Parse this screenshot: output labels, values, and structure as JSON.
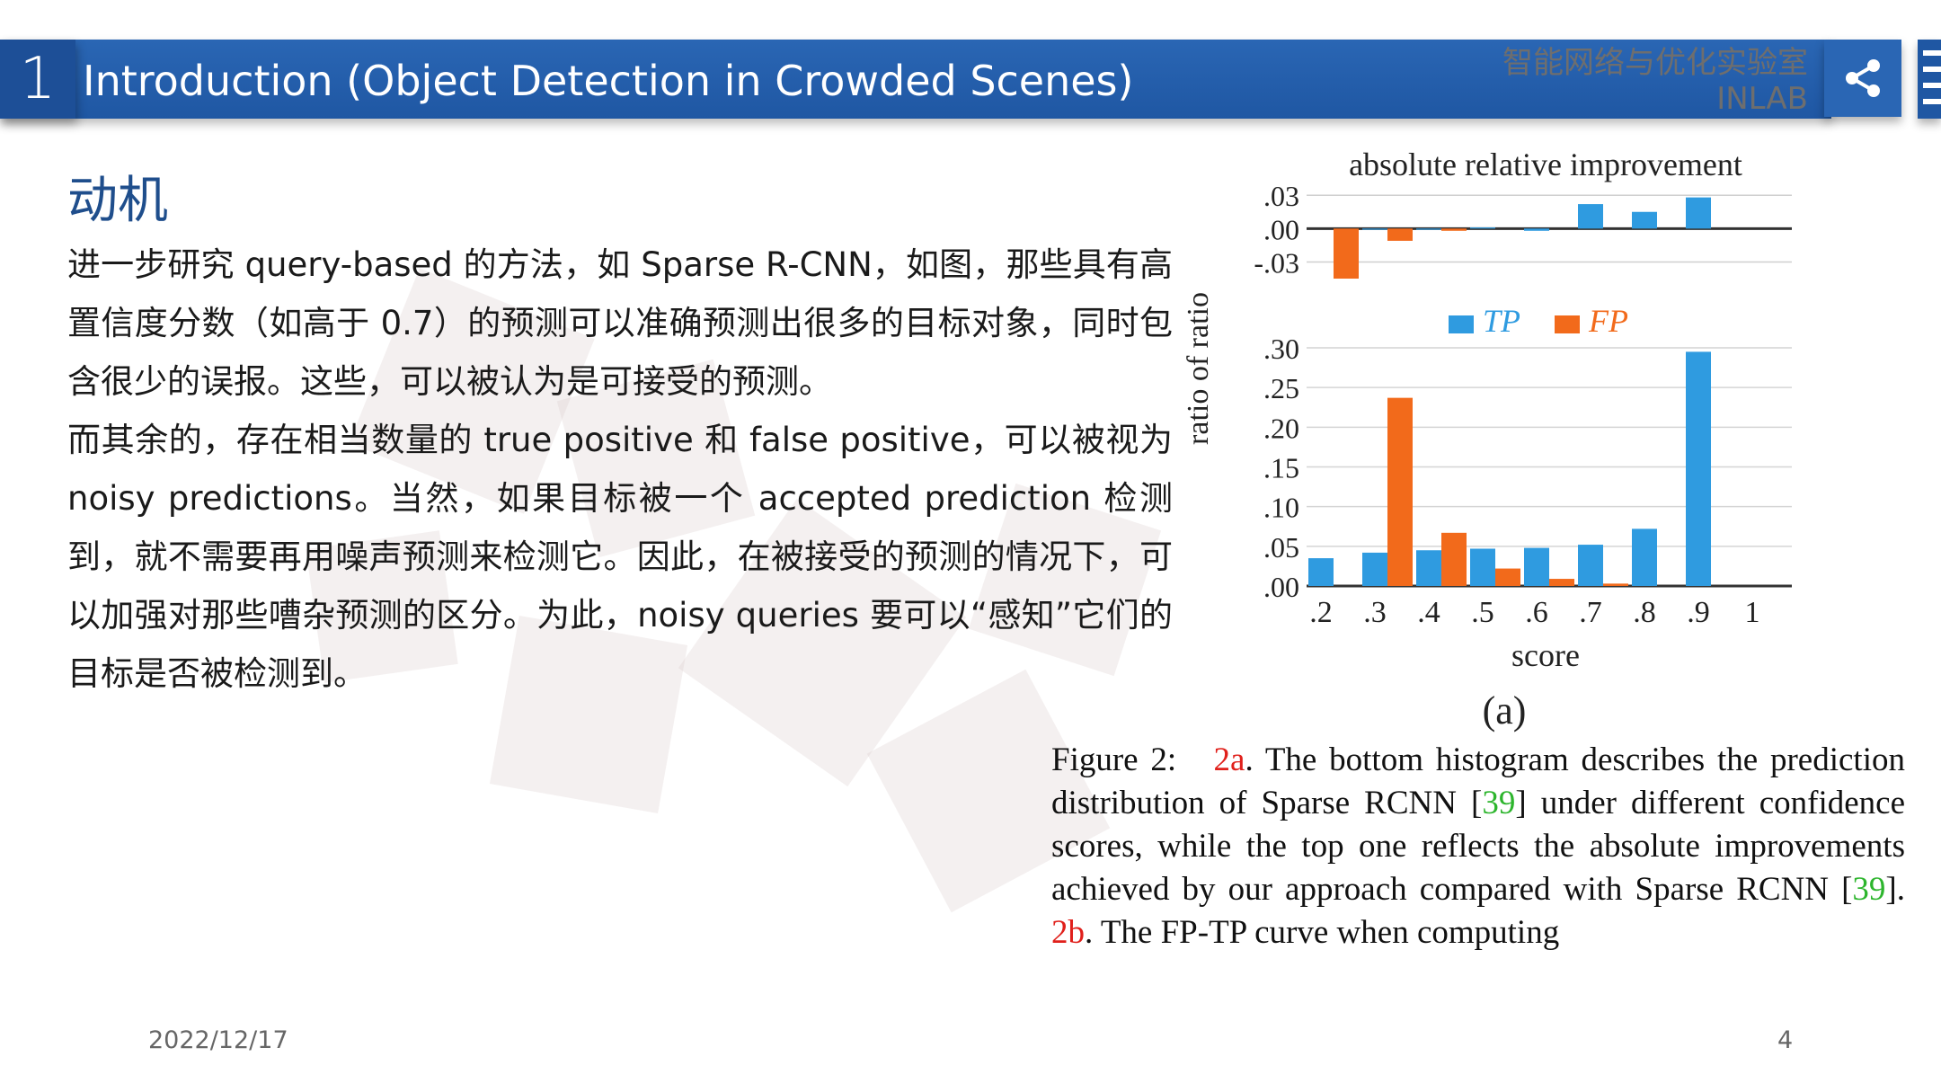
{
  "header": {
    "number": "1",
    "title": "Introduction (Object Detection in Crowded Scenes)",
    "brand_cn": "智能网络与优化实验室",
    "brand_en": "INLAB"
  },
  "section_heading": "动机",
  "paragraphs": [
    "进一步研究 query-based 的方法，如 Sparse R-CNN，如图，那些具有高置信度分数（如高于 0.7）的预测可以准确预测出很多的目标对象，同时包含很少的误报。这些，可以被认为是可接受的预测。",
    "而其余的，存在相当数量的 true positive 和 false positive，可以被视为 noisy predictions。当然，如果目标被一个 accepted prediction 检测到，就不需要再用噪声预测来检测它。因此，在被接受的预测的情况下，可以加强对那些嘈杂预测的区分。为此，noisy queries 要可以“感知”它们的目标是否被检测到。"
  ],
  "figure": {
    "top_title": "absolute relative improvement",
    "ylabel": "ratio of ratio",
    "xlabel": "score",
    "panel_label": "(a)",
    "legend": [
      "TP",
      "FP"
    ]
  },
  "chart_data": [
    {
      "type": "bar",
      "title": "absolute relative improvement",
      "categories": [
        ".2",
        ".3",
        ".4",
        ".5",
        ".6",
        ".7",
        ".8",
        ".9"
      ],
      "y_ticks": [
        ".03",
        ".00",
        "-.03"
      ],
      "ylim": [
        -0.045,
        0.035
      ],
      "series": [
        {
          "name": "TP",
          "color": "#2f9be0",
          "values": [
            0.0,
            -0.001,
            -0.001,
            0.001,
            -0.002,
            0.022,
            0.015,
            0.028
          ]
        },
        {
          "name": "FP",
          "color": "#f26a1b",
          "values": [
            -0.045,
            -0.011,
            -0.002,
            0.0,
            0.0,
            0.0,
            0.0,
            0.0
          ]
        }
      ]
    },
    {
      "type": "bar",
      "categories": [
        ".2",
        ".3",
        ".4",
        ".5",
        ".6",
        ".7",
        ".8",
        ".9"
      ],
      "x_ticks": [
        ".2",
        ".3",
        ".4",
        ".5",
        ".6",
        ".7",
        ".8",
        ".9",
        "1"
      ],
      "y_ticks": [
        ".30",
        ".25",
        ".20",
        ".15",
        ".10",
        ".05",
        ".00"
      ],
      "ylim": [
        0,
        0.3
      ],
      "xlabel": "score",
      "ylabel": "ratio of ratio",
      "legend_position": "top-center",
      "series": [
        {
          "name": "TP",
          "color": "#2f9be0",
          "values": [
            0.035,
            0.042,
            0.045,
            0.047,
            0.048,
            0.052,
            0.072,
            0.295
          ]
        },
        {
          "name": "FP",
          "color": "#f26a1b",
          "values": [
            0.0,
            0.237,
            0.067,
            0.022,
            0.009,
            0.003,
            0.0,
            0.0
          ]
        }
      ]
    }
  ],
  "caption": {
    "fig_label": "Figure 2:",
    "ref_a": "2a",
    "text1": ". The bottom histogram describes the prediction distribution of Sparse RCNN [",
    "cite1": "39",
    "text2": "] under different confidence scores, while the top one reflects the absolute improvements achieved by our approach compared with Sparse RCNN [",
    "cite2": "39",
    "text3": "]. ",
    "ref_b": "2b",
    "text4": ". The FP-TP curve when computing"
  },
  "footer": {
    "date": "2022/12/17",
    "page": "4"
  }
}
